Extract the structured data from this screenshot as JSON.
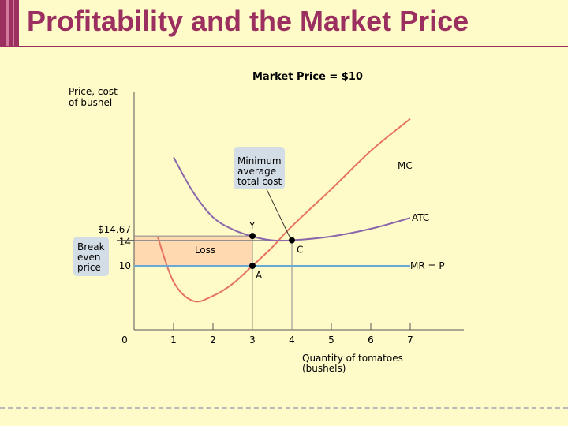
{
  "slide": {
    "title": "Profitability and the Market Price",
    "colors": {
      "title": "#9b2f5f",
      "background": "#fffbc8",
      "mc": "#e57560",
      "atc": "#8a67aa",
      "mr": "#6aa8d6",
      "loss": "#ffd9b0",
      "callout": "#d3dde6"
    }
  },
  "chart_data": {
    "type": "line",
    "title": "Market Price = $10",
    "ylabel": [
      "Price, cost",
      "of bushel"
    ],
    "xlabel": [
      "Quantity of tomatoes",
      "(bushels)"
    ],
    "xlim": [
      0,
      8.4
    ],
    "ylim": [
      0,
      31
    ],
    "x_ticks": [
      0,
      1,
      2,
      3,
      4,
      5,
      6,
      7
    ],
    "x_tick_labels": [
      "0",
      "1",
      "2",
      "3",
      "4",
      "5",
      "6",
      "7"
    ],
    "y_tick_labels": [
      {
        "value": 14.67,
        "label": "$14.67"
      },
      {
        "value": 14,
        "label": "14"
      },
      {
        "value": 10,
        "label": "10"
      }
    ],
    "series": [
      {
        "name": "MC",
        "points": [
          [
            0.6,
            14.5
          ],
          [
            1.0,
            7.5
          ],
          [
            1.5,
            4.5
          ],
          [
            2.0,
            5.3
          ],
          [
            2.5,
            7.2
          ],
          [
            3.0,
            10.0
          ],
          [
            3.5,
            12.9
          ],
          [
            4.0,
            16.2
          ],
          [
            5.0,
            22.0
          ],
          [
            6.0,
            28.0
          ],
          [
            7.0,
            33.0
          ]
        ]
      },
      {
        "name": "ATC",
        "points": [
          [
            1.0,
            27.0
          ],
          [
            1.5,
            21.5
          ],
          [
            2.0,
            17.6
          ],
          [
            2.5,
            15.7
          ],
          [
            3.0,
            14.6
          ],
          [
            3.5,
            14.0
          ],
          [
            4.0,
            14.0
          ],
          [
            5.0,
            14.6
          ],
          [
            6.0,
            15.8
          ],
          [
            7.0,
            17.5
          ]
        ]
      },
      {
        "name": "MR = P",
        "points": [
          [
            0,
            10
          ],
          [
            7.0,
            10
          ]
        ]
      }
    ],
    "points": [
      {
        "label": "Y",
        "x": 3,
        "y": 14.67
      },
      {
        "label": "A",
        "x": 3,
        "y": 10
      },
      {
        "label": "C",
        "x": 4,
        "y": 14
      }
    ],
    "loss_region": {
      "label": "Loss",
      "x": [
        0,
        3
      ],
      "y": [
        10,
        14.67
      ]
    },
    "annotations": {
      "min_atc": [
        "Minimum",
        "average",
        "total cost"
      ],
      "break_even": [
        "Break",
        "even",
        "price"
      ]
    }
  }
}
